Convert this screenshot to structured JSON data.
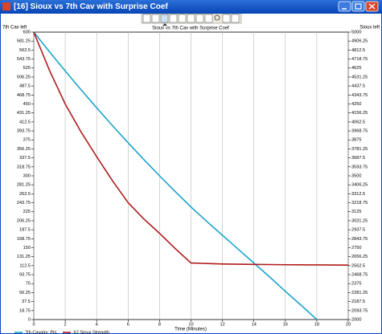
{
  "window": {
    "title": "[16] Sioux vs 7th Cav with Surprise Coef"
  },
  "chart_data": {
    "type": "line",
    "title": "Sioux vs 7th Cav with Surprise Coef",
    "ylabel": "7th Cav left",
    "y2label": "Sioux left",
    "xlabel": "Time (Minutes)",
    "x": [
      0,
      1,
      2,
      3,
      4,
      5,
      6,
      7,
      8,
      9,
      10,
      11,
      12,
      13,
      14,
      15,
      16,
      17,
      18,
      19,
      20
    ],
    "xlim": [
      0,
      20
    ],
    "xticks": [
      0,
      2,
      4,
      6,
      8,
      10,
      12,
      14,
      16,
      18,
      20
    ],
    "ylim": [
      0,
      600
    ],
    "yticks": [
      0,
      18.75,
      37.5,
      56.25,
      75,
      93.75,
      112.5,
      131.25,
      150,
      168.75,
      187.5,
      206.25,
      225,
      243.75,
      262.5,
      281.25,
      300,
      318.75,
      337.5,
      356.25,
      375,
      393.75,
      412.5,
      431.25,
      450,
      468.75,
      487.5,
      506.25,
      525,
      543.75,
      562.5,
      581.25,
      600
    ],
    "y2lim": [
      2000,
      5000
    ],
    "y2ticks": [
      2000,
      2093.75,
      2187.5,
      2281.25,
      2375,
      2468.75,
      2562.5,
      2656.25,
      2750,
      2843.75,
      2937.5,
      3031.25,
      3125,
      3218.75,
      3312.5,
      3406.25,
      3500,
      3593.75,
      3687.5,
      3781.25,
      3875,
      3968.75,
      4062.5,
      4156.25,
      4250,
      4343.75,
      4437.5,
      4531.25,
      4625,
      4718.75,
      4812.5,
      4906.25,
      5000
    ],
    "grid": "x",
    "series": [
      {
        "name": "7th Cavalry: Pts",
        "color": "#1aa3cc",
        "values": [
          600,
          559,
          519,
          480,
          442,
          405,
          369,
          334,
          300,
          267,
          235,
          205,
          176,
          147,
          118,
          89,
          59,
          30,
          0,
          null,
          null
        ]
      },
      {
        "name": "X2 Sioux Strength",
        "color": "#b01a1a",
        "axis": "y2",
        "values": [
          5000,
          4600,
          4250,
          3960,
          3700,
          3450,
          3220,
          3050,
          2900,
          2740,
          2590,
          2585,
          2580,
          2578,
          2576,
          2574,
          2572,
          2571,
          2570,
          2569,
          2568
        ]
      }
    ]
  }
}
